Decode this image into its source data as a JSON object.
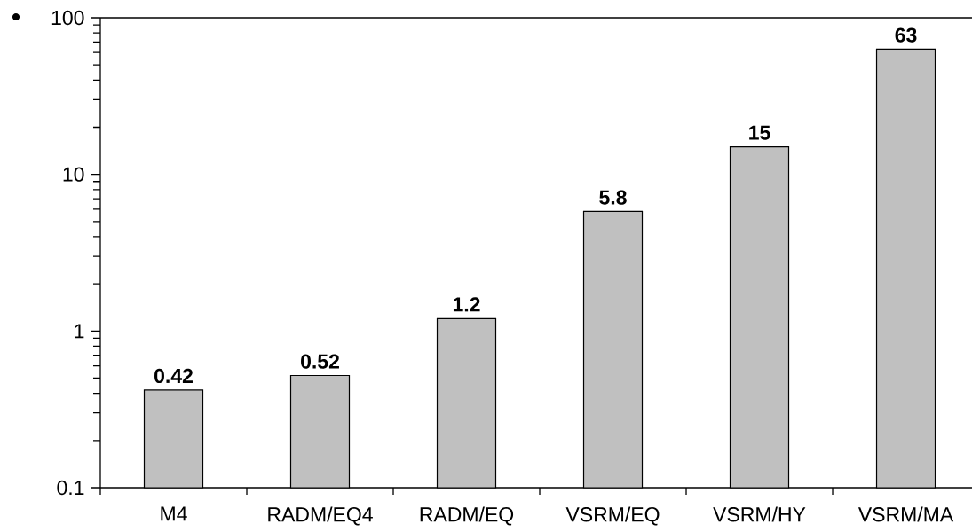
{
  "chart_data": {
    "type": "bar",
    "categories": [
      "M4",
      "RADM/EQ4",
      "RADM/EQ",
      "VSRM/EQ",
      "VSRM/HY",
      "VSRM/MA"
    ],
    "values": [
      0.42,
      0.52,
      1.2,
      5.8,
      15,
      63
    ],
    "color": "#c0c0c0",
    "log": true,
    "ylim": [
      0.1,
      100
    ],
    "yticks": [
      0.1,
      1,
      10,
      100
    ],
    "data_labels": true,
    "annotations": [
      "•"
    ]
  }
}
